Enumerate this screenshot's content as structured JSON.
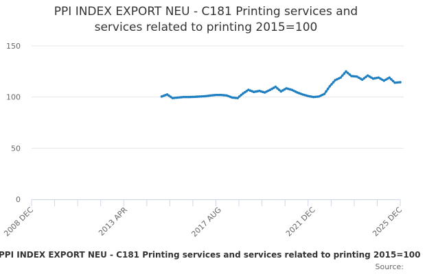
{
  "title_line1": "PPI INDEX EXPORT NEU - C181 Printing services and",
  "title_line2": "services related to printing 2015=100",
  "caption": "PPI INDEX EXPORT NEU - C181 Printing services and services related to printing 2015=100",
  "source_label": "Source:",
  "colors": {
    "series": "#1f7fc1",
    "grid": "#e6e6e6",
    "axis": "#ccd6eb"
  },
  "chart_data": {
    "type": "line",
    "title": "PPI INDEX EXPORT NEU - C181 Printing services and services related to printing 2015=100",
    "xlabel": "",
    "ylabel": "",
    "ylim": [
      0,
      150
    ],
    "yticks": [
      0,
      50,
      100,
      150
    ],
    "xlim": [
      "2008 DEC",
      "2025 DEC"
    ],
    "xtick_labels": [
      "2008 DEC",
      "2013 APR",
      "2017 AUG",
      "2021 DEC",
      "2025 DEC"
    ],
    "grid": true,
    "legend": "none",
    "series": [
      {
        "name": "PPI INDEX EXPORT NEU - C181 Printing services and services related to printing 2015=100",
        "x": [
          "2014 DEC",
          "2015 MAR",
          "2015 JUN",
          "2015 SEP",
          "2015 DEC",
          "2016 MAR",
          "2016 JUN",
          "2016 SEP",
          "2016 DEC",
          "2017 MAR",
          "2017 JUN",
          "2017 SEP",
          "2017 DEC",
          "2018 MAR",
          "2018 JUN",
          "2018 SEP",
          "2018 DEC",
          "2019 MAR",
          "2019 JUN",
          "2019 SEP",
          "2019 DEC",
          "2020 MAR",
          "2020 JUN",
          "2020 SEP",
          "2020 DEC",
          "2021 MAR",
          "2021 JUN",
          "2021 SEP",
          "2021 DEC",
          "2022 MAR",
          "2022 JUN",
          "2022 SEP",
          "2022 DEC",
          "2023 MAR",
          "2023 JUN",
          "2023 SEP",
          "2023 DEC",
          "2024 MAR",
          "2024 JUN",
          "2024 SEP",
          "2024 DEC",
          "2025 MAR",
          "2025 JUN",
          "2025 SEP",
          "2025 DEC"
        ],
        "values": [
          100.5,
          102.5,
          99.0,
          99.5,
          100.0,
          100.0,
          100.2,
          100.5,
          100.8,
          101.5,
          102.0,
          102.0,
          101.5,
          99.5,
          99.0,
          103.5,
          107.0,
          105.0,
          106.0,
          104.5,
          107.0,
          110.0,
          105.5,
          108.5,
          107.0,
          104.5,
          102.5,
          101.0,
          100.0,
          100.5,
          103.0,
          110.5,
          116.5,
          119.0,
          125.0,
          120.5,
          120.0,
          117.0,
          121.0,
          118.0,
          119.0,
          116.0,
          119.0,
          114.0,
          114.5
        ],
        "color": "#1f7fc1"
      }
    ]
  }
}
